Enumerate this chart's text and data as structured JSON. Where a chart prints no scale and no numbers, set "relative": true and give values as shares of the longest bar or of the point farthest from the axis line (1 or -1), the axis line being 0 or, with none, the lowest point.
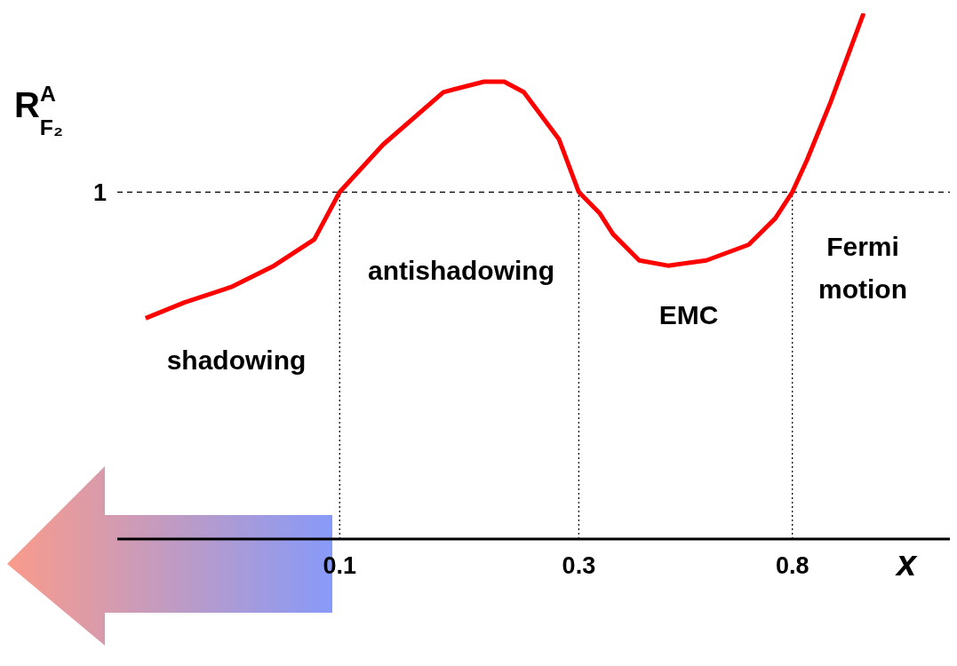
{
  "chart_data": {
    "type": "line",
    "relative": true,
    "xlabel": "x",
    "ylabel": "R$^{A}$$_{F₂}$",
    "log": "x",
    "xlim": [
      0.036,
      1.65
    ],
    "xticks": [
      0.1,
      0.3,
      0.8
    ],
    "grid": false,
    "legend": false,
    "marker": "none",
    "line_style": "solid",
    "x": [
      0.041,
      0.049,
      0.061,
      0.074,
      0.089,
      0.1,
      0.122,
      0.161,
      0.194,
      0.213,
      0.233,
      0.274,
      0.3,
      0.33,
      0.351,
      0.396,
      0.452,
      0.539,
      0.655,
      0.74,
      0.8,
      0.855,
      0.953,
      1.11
    ],
    "series": [
      {
        "color": "#ff0000",
        "values": [
          0.42,
          0.45,
          0.48,
          0.52,
          0.57,
          0.66,
          0.75,
          0.85,
          0.87,
          0.87,
          0.85,
          0.76,
          0.66,
          0.62,
          0.58,
          0.53,
          0.52,
          0.53,
          0.56,
          0.61,
          0.66,
          0.72,
          0.83,
          1.0
        ]
      }
    ],
    "ref_lines": [
      {
        "axis": "y",
        "value": 0.66,
        "label": "1",
        "color": "#000000",
        "line_style": "dashed"
      },
      {
        "axis": "x",
        "value": 0.1,
        "color": "#000000",
        "line_style": "dotted"
      },
      {
        "axis": "x",
        "value": 0.3,
        "color": "#000000",
        "line_style": "dotted"
      },
      {
        "axis": "x",
        "value": 0.8,
        "color": "#000000",
        "line_style": "dotted"
      }
    ],
    "annotations": [
      "shadowing",
      "antishadowing",
      "EMC",
      "Fermi\nmotion"
    ]
  }
}
